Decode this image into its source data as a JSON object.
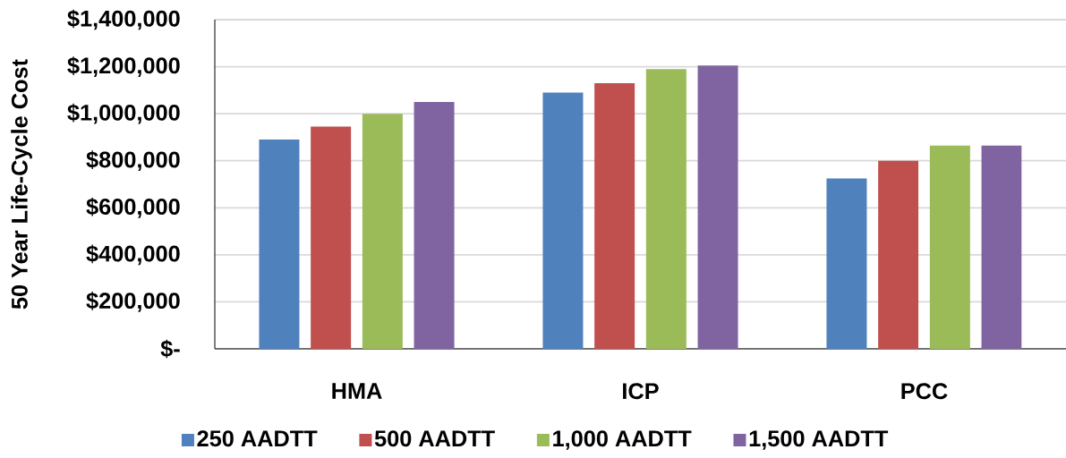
{
  "chart_data": {
    "type": "bar",
    "ylabel": "50 Year Life-Cycle Cost",
    "categories": [
      "HMA",
      "ICP",
      "PCC"
    ],
    "series": [
      {
        "name": "250 AADTT",
        "color": "#4f81bd",
        "values": [
          890000,
          1090000,
          725000
        ]
      },
      {
        "name": "500 AADTT",
        "color": "#c0504d",
        "values": [
          945000,
          1130000,
          800000
        ]
      },
      {
        "name": "1,000 AADTT",
        "color": "#9bbb59",
        "values": [
          1000000,
          1190000,
          865000
        ]
      },
      {
        "name": "1,500 AADTT",
        "color": "#8064a2",
        "values": [
          1050000,
          1205000,
          865000
        ]
      }
    ],
    "ylim": [
      0,
      1400000
    ],
    "yticks": [
      {
        "value": 0,
        "label": "$-"
      },
      {
        "value": 200000,
        "label": "$200,000"
      },
      {
        "value": 400000,
        "label": "$400,000"
      },
      {
        "value": 600000,
        "label": "$600,000"
      },
      {
        "value": 800000,
        "label": "$800,000"
      },
      {
        "value": 1000000,
        "label": "$1,000,000"
      },
      {
        "value": 1200000,
        "label": "$1,200,000"
      },
      {
        "value": 1400000,
        "label": "$1,400,000"
      }
    ],
    "grid": "y",
    "legend": "bottom"
  }
}
